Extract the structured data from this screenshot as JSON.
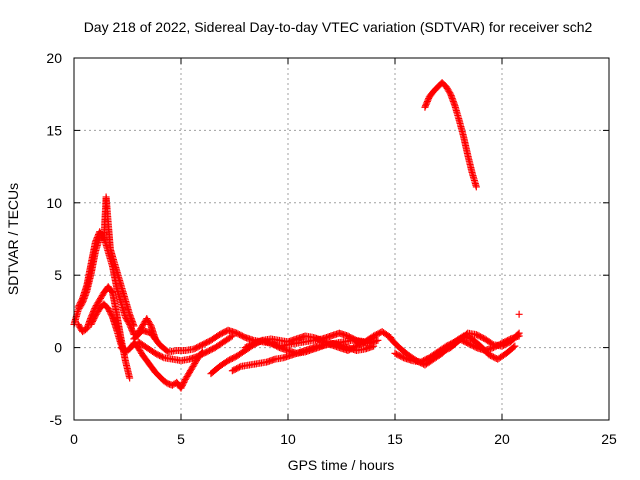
{
  "chart_data": {
    "type": "scatter",
    "title": "Day 218 of 2022, Sidereal Day-to-day VTEC variation (SDTVAR) for receiver sch2",
    "xlabel": "GPS time / hours",
    "ylabel": "SDTVAR / TECUs",
    "xlim": [
      0,
      25
    ],
    "ylim": [
      -5,
      20
    ],
    "xticks": [
      "0",
      "5",
      "10",
      "15",
      "20",
      "25"
    ],
    "yticks": [
      "-5",
      "0",
      "5",
      "10",
      "15",
      "20"
    ],
    "grid": true,
    "marker": "+",
    "color": "#ff0000",
    "series": [
      {
        "name": "SDTVAR",
        "segments": [
          {
            "x": [
              0,
              0.2,
              0.4,
              0.6,
              0.8,
              1.0,
              1.2,
              1.4,
              1.6,
              1.8,
              2.0,
              2.2,
              2.4,
              2.6,
              2.8,
              3.0,
              3.2,
              3.4,
              3.6,
              3.8
            ],
            "y": [
              1.6,
              2.6,
              3.1,
              3.9,
              5.1,
              6.6,
              7.6,
              7.6,
              6.6,
              5.6,
              4.1,
              3.1,
              2.1,
              1.6,
              0.9,
              1.0,
              1.5,
              2.0,
              1.5,
              0.6
            ]
          },
          {
            "x": [
              0.2,
              0.4,
              0.6,
              0.8,
              1.0,
              1.2,
              1.4,
              1.5,
              1.6,
              1.7,
              1.8,
              2.0,
              2.2,
              2.4,
              2.6,
              2.8
            ],
            "y": [
              2.8,
              3.4,
              4.3,
              5.8,
              7.3,
              8.0,
              7.5,
              10.4,
              8.6,
              6.8,
              6.3,
              5.3,
              4.3,
              3.3,
              2.3,
              1.5
            ]
          },
          {
            "x": [
              0.2,
              0.4,
              0.6,
              0.8,
              1.0,
              1.2,
              1.4,
              1.6,
              1.8,
              2.0,
              2.2,
              2.4,
              2.6
            ],
            "y": [
              1.6,
              1.1,
              1.3,
              2.1,
              2.8,
              3.3,
              3.8,
              4.2,
              3.8,
              2.3,
              0.6,
              -0.9,
              -2.1
            ]
          },
          {
            "x": [
              0.8,
              1.0,
              1.2,
              1.4,
              1.6,
              1.8,
              2.0,
              2.2,
              2.4
            ],
            "y": [
              1.6,
              2.2,
              2.7,
              3.0,
              2.7,
              2.1,
              1.2,
              0.2,
              -0.3
            ]
          },
          {
            "x": [
              2.2,
              2.4,
              2.6,
              2.8,
              3.0,
              3.2,
              3.4,
              3.6,
              3.8,
              4.0,
              4.2,
              4.4,
              4.6,
              4.8,
              5.0,
              5.2,
              5.4,
              5.6,
              5.8,
              6.0
            ],
            "y": [
              0.0,
              -0.3,
              -0.1,
              0.3,
              0.0,
              -0.5,
              -0.9,
              -1.3,
              -1.7,
              -2.0,
              -2.3,
              -2.5,
              -2.6,
              -2.4,
              -2.8,
              -2.2,
              -1.7,
              -1.2,
              -0.7,
              -0.3
            ]
          },
          {
            "x": [
              3.0,
              3.4,
              3.8,
              4.2,
              4.6,
              5.0,
              5.4,
              5.8,
              6.2,
              6.6,
              7.0,
              7.4
            ],
            "y": [
              0.4,
              0.0,
              -0.4,
              -0.7,
              -0.8,
              -0.9,
              -0.8,
              -0.6,
              -0.3,
              0.0,
              0.4,
              0.8
            ]
          },
          {
            "x": [
              2.8,
              3.2,
              3.6,
              4.0,
              4.4,
              4.8,
              5.2,
              5.6,
              6.0,
              6.4,
              6.8,
              7.2,
              7.6,
              8.0,
              8.4,
              8.8,
              9.2,
              9.6,
              10.0,
              10.4,
              10.8,
              11.2,
              11.6,
              12.0,
              12.4,
              12.8,
              13.2,
              13.6,
              14.0,
              14.4,
              14.8
            ],
            "y": [
              0.6,
              1.2,
              1.0,
              0.2,
              -0.3,
              -0.2,
              -0.2,
              -0.1,
              0.2,
              0.5,
              0.9,
              1.2,
              1.0,
              0.7,
              0.5,
              0.4,
              0.3,
              0.1,
              0.2,
              0.3,
              0.4,
              0.5,
              0.6,
              0.8,
              1.0,
              0.8,
              0.5,
              0.4,
              0.8,
              1.1,
              0.7
            ]
          },
          {
            "x": [
              6.4,
              6.8,
              7.2,
              7.6,
              8.0,
              8.4,
              8.8,
              9.2,
              9.6,
              10.0,
              10.4,
              10.8,
              11.2,
              11.6,
              12.0,
              12.4,
              12.8,
              13.2,
              13.6,
              14.0
            ],
            "y": [
              -1.8,
              -1.3,
              -0.9,
              -0.6,
              -0.2,
              0.2,
              0.5,
              0.3,
              0.0,
              -0.2,
              -0.4,
              -0.3,
              -0.1,
              0.1,
              0.3,
              0.2,
              0.0,
              -0.2,
              -0.1,
              0.1
            ]
          },
          {
            "x": [
              7.4,
              7.8,
              8.2,
              8.6,
              9.0,
              9.4,
              9.8,
              10.2,
              10.6,
              11.0,
              11.4,
              11.8,
              12.2,
              12.6,
              13.0,
              13.4,
              13.8,
              14.2
            ],
            "y": [
              -1.6,
              -1.3,
              -1.2,
              -1.1,
              -1.0,
              -0.8,
              -0.7,
              -0.5,
              -0.3,
              -0.1,
              0.1,
              0.2,
              0.3,
              0.4,
              0.5,
              0.4,
              0.3,
              0.5
            ]
          },
          {
            "x": [
              8.0,
              8.4,
              8.8,
              9.2,
              9.6,
              10.0,
              10.4,
              10.8,
              11.2,
              11.6,
              12.0,
              12.4,
              12.8,
              13.2,
              13.6,
              14.0
            ],
            "y": [
              0.0,
              0.3,
              0.5,
              0.6,
              0.5,
              0.4,
              0.6,
              0.8,
              0.7,
              0.5,
              0.2,
              0.0,
              -0.2,
              0.1,
              0.4,
              0.7
            ]
          },
          {
            "x": [
              14.8,
              15.2,
              15.6,
              16.0,
              16.4,
              16.8,
              17.2,
              17.6,
              18.0,
              18.4,
              18.8,
              19.2,
              19.6,
              20.0,
              20.4,
              20.8
            ],
            "y": [
              0.6,
              0.0,
              -0.5,
              -0.9,
              -1.2,
              -0.8,
              -0.4,
              0.2,
              0.6,
              0.3,
              0.0,
              -0.2,
              0.0,
              0.3,
              0.6,
              0.8
            ]
          },
          {
            "x": [
              15.0,
              15.4,
              15.8,
              16.2,
              16.6,
              17.0,
              17.4,
              17.8,
              18.2,
              18.6,
              19.0,
              19.4,
              19.8,
              20.2,
              20.6
            ],
            "y": [
              -0.4,
              -0.7,
              -0.9,
              -1.0,
              -0.7,
              -0.3,
              0.1,
              0.4,
              0.8,
              0.6,
              0.1,
              -0.5,
              -0.8,
              -0.4,
              0.1
            ]
          },
          {
            "x": [
              16.8,
              17.2,
              17.6,
              18.0,
              18.4,
              18.8,
              19.2,
              19.6,
              20.0,
              20.4,
              20.8
            ],
            "y": [
              -0.6,
              -0.3,
              0.0,
              0.5,
              1.0,
              0.9,
              0.6,
              0.2,
              0.1,
              0.4,
              1.0
            ]
          },
          {
            "x": [
              16.4,
              16.6,
              16.8,
              17.0,
              17.2,
              17.4,
              17.6,
              17.8,
              18.0,
              18.2,
              18.4,
              18.6,
              18.8
            ],
            "y": [
              16.6,
              17.3,
              17.7,
              18.0,
              18.3,
              18.0,
              17.5,
              16.7,
              15.7,
              14.6,
              13.3,
              12.1,
              11.1
            ]
          },
          {
            "x": [
              20.8
            ],
            "y": [
              2.3
            ]
          }
        ]
      }
    ]
  }
}
